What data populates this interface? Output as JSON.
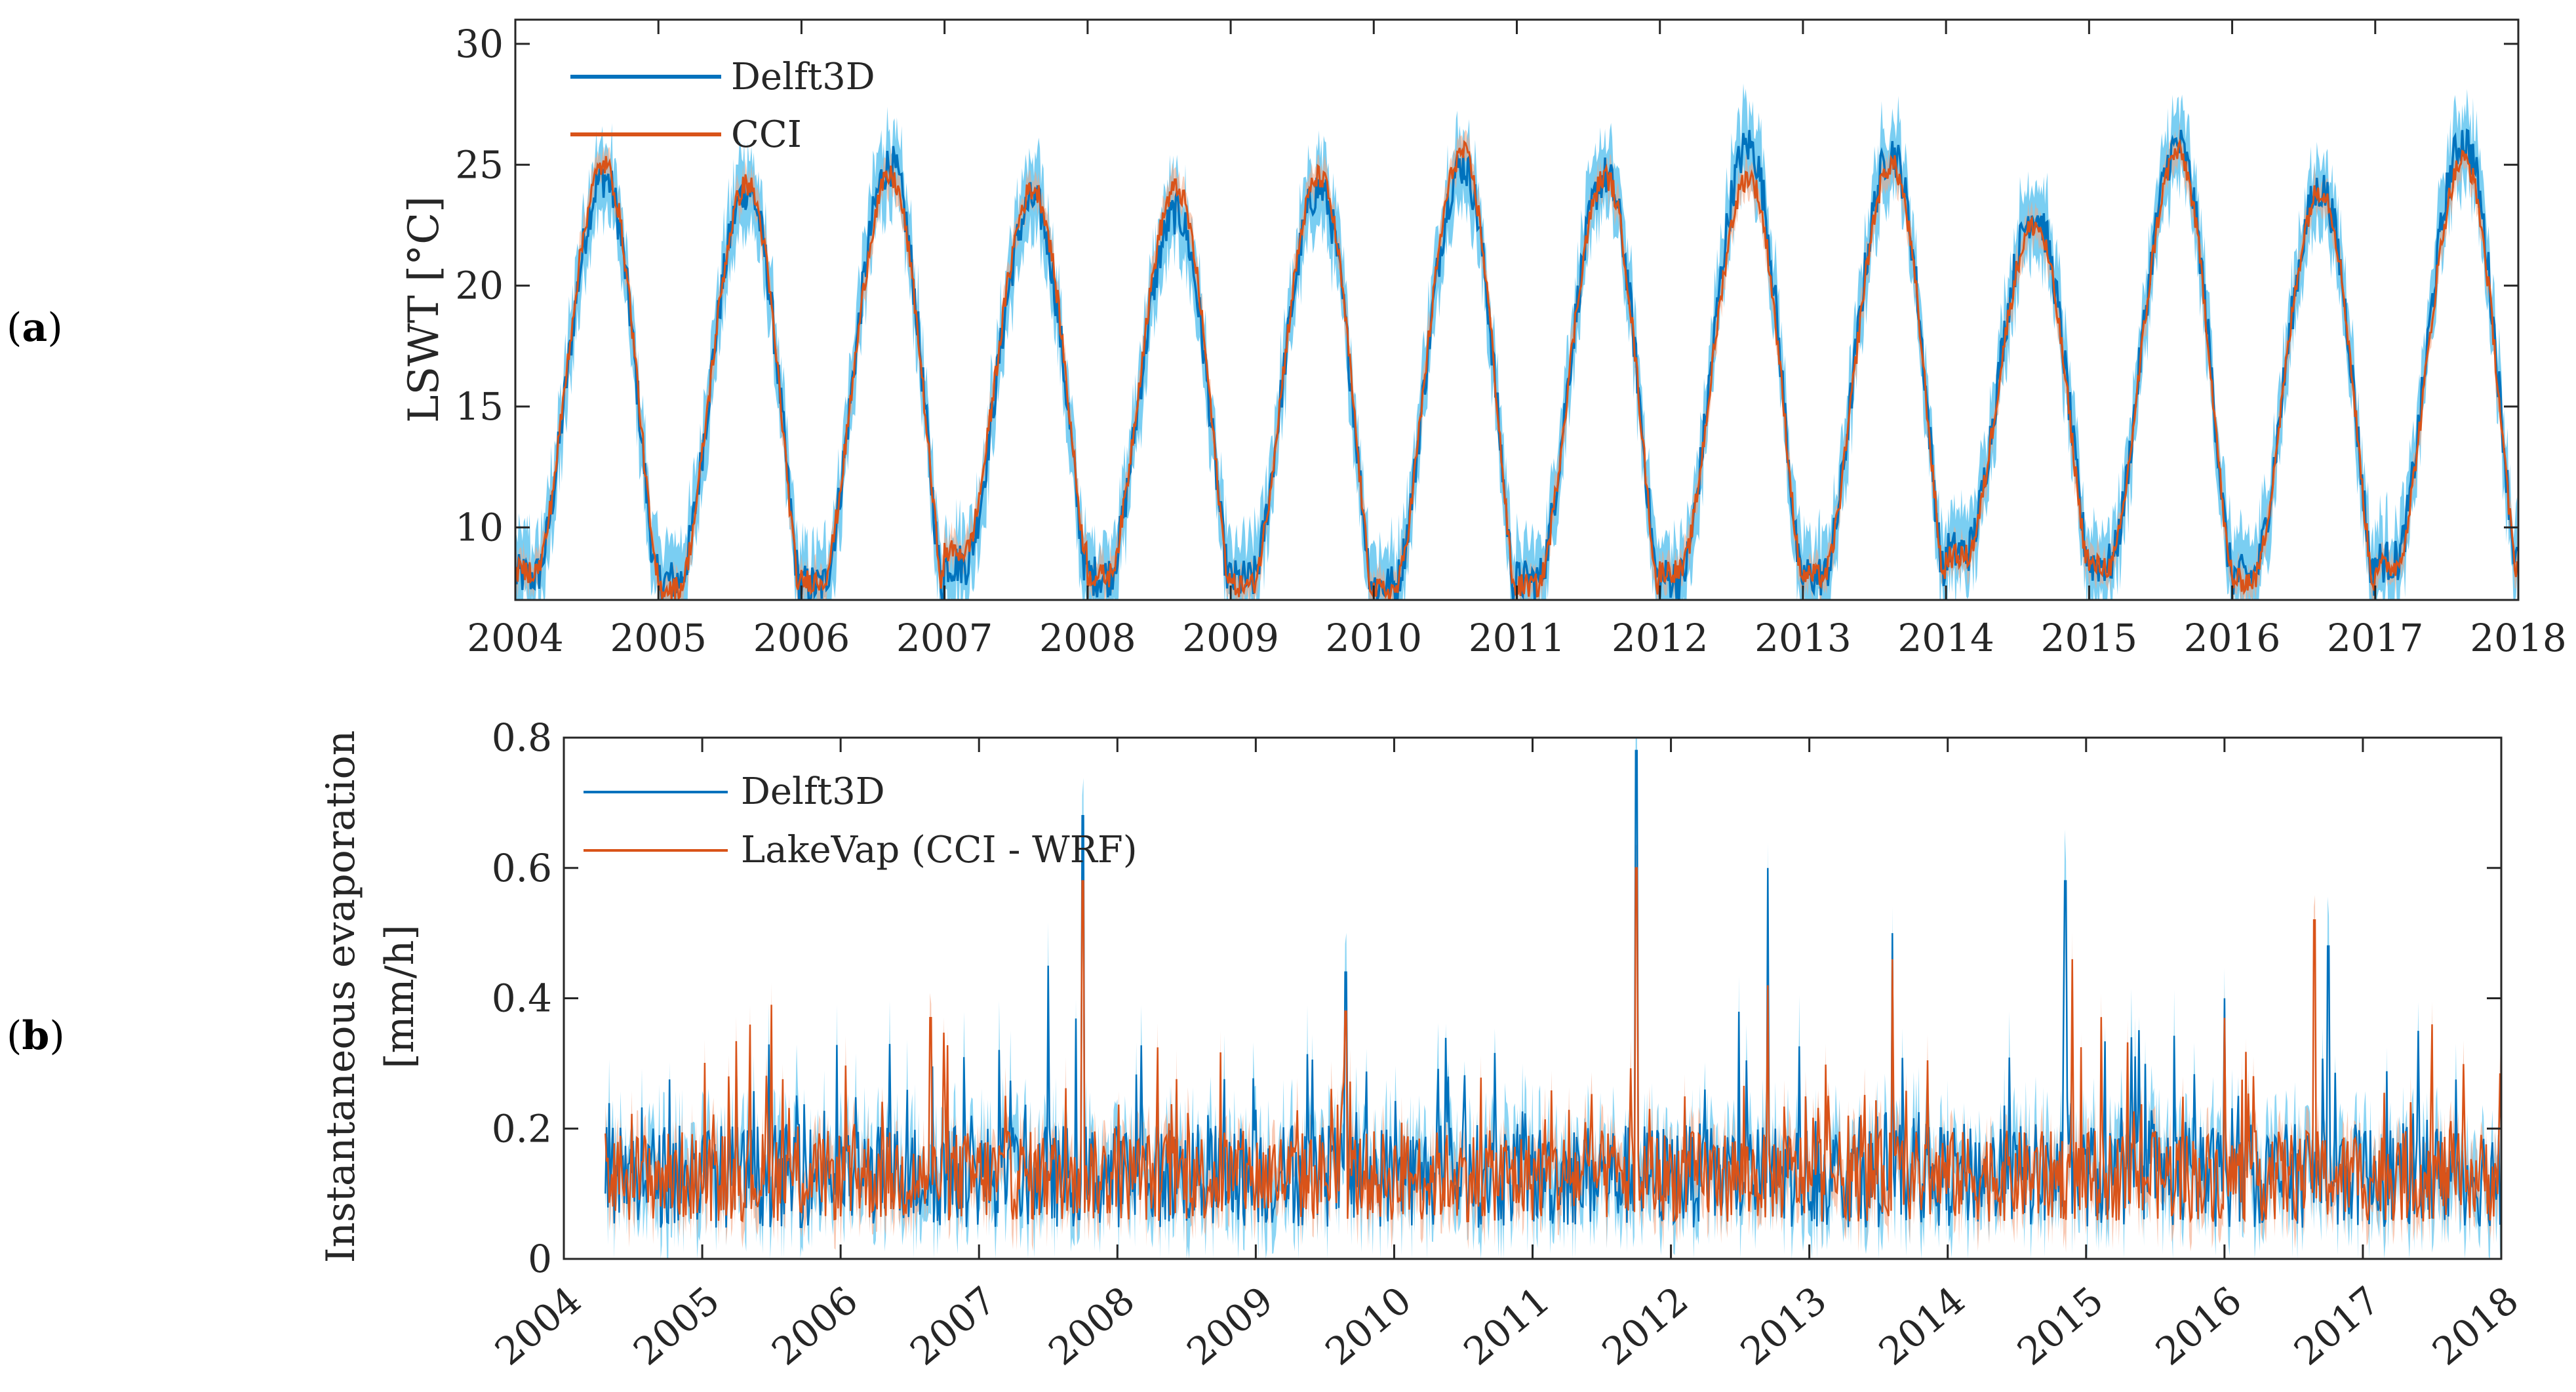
{
  "colors": {
    "delft": "#0072BD",
    "cci": "#D95319",
    "delft_band": "#4DBEEE",
    "cci_band": "#F4A582",
    "axis": "#262626"
  },
  "chart_data": [
    {
      "type": "line",
      "panel_label_open": "(",
      "panel_label_letter": "a",
      "panel_label_close": ")",
      "ylabel": "LSWT [°C]",
      "xlim": [
        2004,
        2018
      ],
      "ylim": [
        7,
        31
      ],
      "xticks": [
        "2004",
        "2005",
        "2006",
        "2007",
        "2008",
        "2009",
        "2010",
        "2011",
        "2012",
        "2013",
        "2014",
        "2015",
        "2016",
        "2017",
        "2018"
      ],
      "yticks": [
        "10",
        "15",
        "20",
        "25",
        "30"
      ],
      "legend": [
        "Delft3D",
        "CCI"
      ],
      "series": [
        {
          "name": "Delft3D",
          "model": "seasonal",
          "winter_min": [
            8.0,
            7.8,
            7.6,
            8.5,
            8.0,
            7.8,
            7.6,
            7.8,
            7.9,
            8.0,
            9.0,
            8.5,
            8.0,
            8.6
          ],
          "summer_max": [
            24.5,
            24.0,
            25.0,
            23.5,
            23.0,
            24.0,
            25.0,
            24.5,
            25.8,
            25.5,
            23.0,
            25.8,
            24.0,
            26.0
          ],
          "band_halfwidth": 1.5
        },
        {
          "name": "CCI",
          "model": "seasonal",
          "winter_min": [
            8.2,
            7.5,
            7.8,
            9.0,
            8.0,
            7.6,
            7.4,
            7.6,
            8.2,
            8.0,
            8.8,
            8.4,
            7.8,
            8.4
          ],
          "summer_max": [
            25.0,
            24.2,
            24.5,
            24.0,
            24.0,
            24.5,
            25.5,
            24.5,
            24.5,
            25.0,
            22.5,
            25.5,
            24.0,
            25.2
          ],
          "band_halfwidth": 0.6
        }
      ]
    },
    {
      "type": "line",
      "panel_label_open": "(",
      "panel_label_letter": "b",
      "panel_label_close": ")",
      "ylabel_line1": "Instantaneous evaporation",
      "ylabel_line2": "[mm/h]",
      "xlim": [
        2004,
        2018
      ],
      "ylim": [
        0,
        0.8
      ],
      "xticks": [
        "2004",
        "2005",
        "2006",
        "2007",
        "2008",
        "2009",
        "2010",
        "2011",
        "2012",
        "2013",
        "2014",
        "2015",
        "2016",
        "2017",
        "2018"
      ],
      "yticks": [
        "0",
        "0.2",
        "0.4",
        "0.6",
        "0.8"
      ],
      "legend": [
        "Delft3D",
        "LakeVap (CCI - WRF)"
      ],
      "series": [
        {
          "name": "Delft3D",
          "baseline": 0.12,
          "noise": 0.08,
          "start": 2004.3,
          "spikes": [
            [
              2007.5,
              0.45
            ],
            [
              2007.75,
              0.68
            ],
            [
              2009.65,
              0.44
            ],
            [
              2011.75,
              0.78
            ],
            [
              2012.7,
              0.6
            ],
            [
              2013.6,
              0.5
            ],
            [
              2014.85,
              0.58
            ],
            [
              2016.0,
              0.4
            ],
            [
              2016.75,
              0.48
            ],
            [
              2017.4,
              0.35
            ]
          ]
        },
        {
          "name": "LakeVap (CCI - WRF)",
          "baseline": 0.12,
          "noise": 0.07,
          "start": 2004.3,
          "spikes": [
            [
              2005.5,
              0.39
            ],
            [
              2006.65,
              0.37
            ],
            [
              2007.75,
              0.58
            ],
            [
              2009.65,
              0.38
            ],
            [
              2011.75,
              0.6
            ],
            [
              2012.7,
              0.42
            ],
            [
              2013.6,
              0.46
            ],
            [
              2014.9,
              0.46
            ],
            [
              2016.0,
              0.37
            ],
            [
              2016.65,
              0.52
            ],
            [
              2017.5,
              0.36
            ]
          ]
        }
      ]
    }
  ]
}
